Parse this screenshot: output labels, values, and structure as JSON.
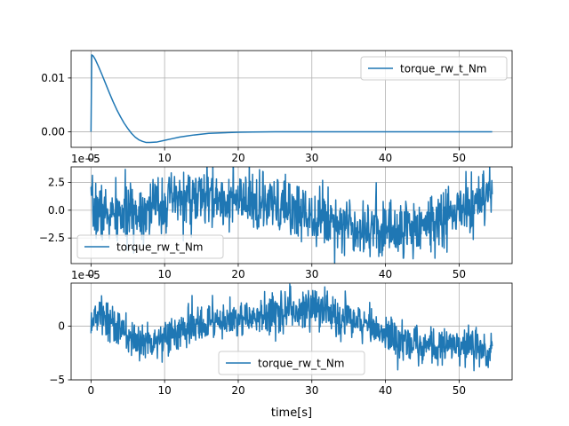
{
  "figure": {
    "xlabel": "time[s]"
  },
  "chart_data": [
    {
      "type": "line",
      "title": "",
      "xlabel": "",
      "ylabel": "",
      "xlim": [
        -2.7,
        57.2
      ],
      "ylim": [
        -0.0029,
        0.0151
      ],
      "xticks": [
        0,
        10,
        20,
        30,
        40,
        50
      ],
      "xtick_labels": [
        "0",
        "10",
        "20",
        "30",
        "40",
        "50"
      ],
      "yticks": [
        0.0,
        0.01
      ],
      "ytick_labels": [
        "0.00",
        "0.01"
      ],
      "offset_label": "",
      "grid": true,
      "legend": "top-right",
      "series": [
        {
          "name": "torque_rw_t_Nm",
          "color": "#1f77b4",
          "x": [
            0,
            0,
            0.1,
            0.3,
            0.6,
            1,
            1.5,
            2,
            2.5,
            3,
            3.5,
            4,
            4.5,
            5,
            5.5,
            6,
            6.5,
            7,
            7.5,
            8,
            9,
            10,
            11,
            12,
            13,
            14,
            16,
            18,
            20,
            22,
            25,
            28,
            30,
            35,
            40,
            45,
            50,
            54.5
          ],
          "y": [
            0.0,
            0.0,
            0.0143,
            0.0141,
            0.0134,
            0.0122,
            0.0106,
            0.0089,
            0.0072,
            0.0056,
            0.0041,
            0.0028,
            0.0016,
            0.0006,
            -0.0003,
            -0.001,
            -0.0015,
            -0.0018,
            -0.002,
            -0.002,
            -0.0019,
            -0.0016,
            -0.0013,
            -0.001,
            -0.0008,
            -0.0006,
            -0.0003,
            -0.0002,
            -0.0001,
            -5e-05,
            0.0,
            0.0,
            0.0,
            0.0,
            0.0,
            0.0,
            0.0,
            0.0
          ]
        }
      ]
    },
    {
      "type": "line",
      "title": "",
      "xlabel": "",
      "ylabel": "",
      "xlim": [
        -2.7,
        57.2
      ],
      "ylim": [
        -4.8,
        3.9
      ],
      "xticks": [
        0,
        10,
        20,
        30,
        40,
        50
      ],
      "xtick_labels": [
        "0",
        "10",
        "20",
        "30",
        "40",
        "50"
      ],
      "yticks": [
        -2.5,
        0,
        2.5
      ],
      "ytick_labels": [
        "−2.5",
        "0.0",
        "2.5"
      ],
      "offset_label": "1e−5",
      "grid": true,
      "legend": "lower-left",
      "noise": {
        "sigma": 1.3,
        "seed": 7,
        "x_end": 54.5,
        "n_points": 1100
      },
      "series": [
        {
          "name": "torque_rw_t_Nm",
          "color": "#1f77b4",
          "trend_x": [
            0,
            3,
            6,
            9,
            12,
            15,
            18,
            21,
            24,
            27,
            30,
            33,
            36,
            39,
            42,
            45,
            48,
            51,
            54.5
          ],
          "trend_y": [
            0.2,
            -0.6,
            -0.2,
            0.5,
            0.9,
            1.1,
            1.0,
            0.6,
            0.4,
            0.1,
            -0.3,
            -0.9,
            -1.4,
            -1.6,
            -1.8,
            -1.3,
            -0.7,
            0.2,
            1.2
          ]
        }
      ]
    },
    {
      "type": "line",
      "title": "",
      "xlabel": "time[s]",
      "ylabel": "",
      "xlim": [
        -2.7,
        57.2
      ],
      "ylim": [
        -5.0,
        4.0
      ],
      "xticks": [
        0,
        10,
        20,
        30,
        40,
        50
      ],
      "xtick_labels": [
        "0",
        "10",
        "20",
        "30",
        "40",
        "50"
      ],
      "yticks": [
        -5,
        0
      ],
      "ytick_labels": [
        "−5",
        "0"
      ],
      "offset_label": "1e−5",
      "grid": true,
      "legend": "lower-center",
      "noise": {
        "sigma": 0.9,
        "seed": 13,
        "x_end": 54.5,
        "n_points": 1100
      },
      "series": [
        {
          "name": "torque_rw_t_Nm",
          "color": "#1f77b4",
          "trend_x": [
            0,
            2,
            4,
            6,
            9,
            12,
            15,
            18,
            21,
            24,
            27,
            30,
            33,
            36,
            39,
            42,
            45,
            48,
            51,
            54.5
          ],
          "trend_y": [
            0.8,
            1.0,
            -0.5,
            -1.5,
            -1.2,
            -0.6,
            0.2,
            0.6,
            0.6,
            1.0,
            1.6,
            1.8,
            1.2,
            0.4,
            -0.4,
            -1.2,
            -1.8,
            -1.8,
            -1.6,
            -2.2
          ]
        }
      ]
    }
  ]
}
